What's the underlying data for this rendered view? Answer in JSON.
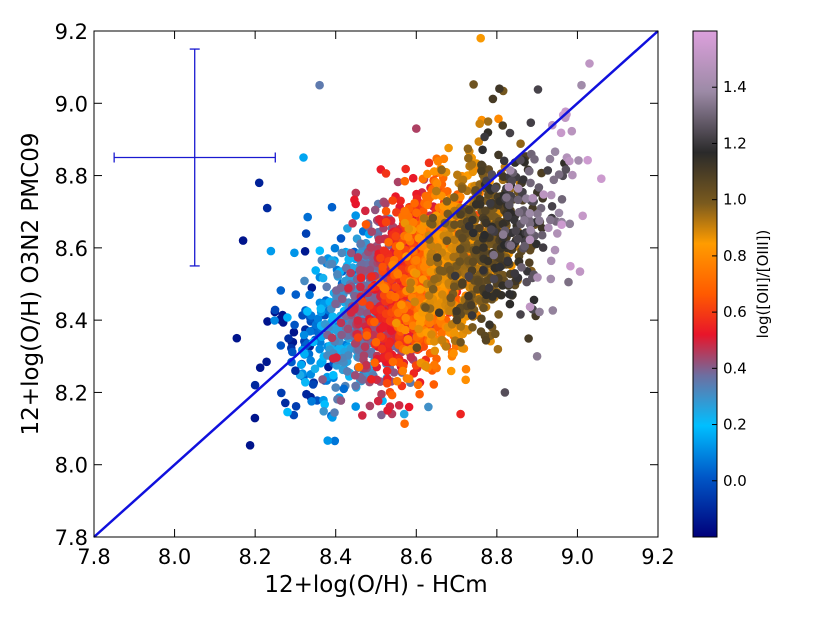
{
  "chart_data": {
    "type": "scatter",
    "xlabel": "12+log(O/H) - HCm",
    "ylabel": "12+log(O/H) O3N2 PMC09",
    "xlim": [
      7.8,
      9.2
    ],
    "ylim": [
      7.8,
      9.2
    ],
    "x_ticks": [
      7.8,
      8.0,
      8.2,
      8.4,
      8.6,
      8.8,
      9.0,
      9.2
    ],
    "x_tick_labels": [
      "7.8",
      "8.0",
      "8.2",
      "8.4",
      "8.6",
      "8.8",
      "9.0",
      "9.2"
    ],
    "y_ticks": [
      7.8,
      8.0,
      8.2,
      8.4,
      8.6,
      8.8,
      9.0,
      9.2
    ],
    "y_tick_labels": [
      "7.8",
      "8.0",
      "8.2",
      "8.4",
      "8.6",
      "8.8",
      "9.0",
      "9.2"
    ],
    "grid": false,
    "one_to_one_line": {
      "from": [
        7.8,
        7.8
      ],
      "to": [
        9.2,
        9.2
      ],
      "color": "#1010dd"
    },
    "error_bar": {
      "x": 8.05,
      "y": 8.85,
      "x_err": 0.2,
      "y_err": 0.3,
      "color": "#1a1ad0"
    },
    "colorbar": {
      "label": "log([OII]/[OIII])",
      "range": [
        -0.2,
        1.6
      ],
      "ticks": [
        0.0,
        0.2,
        0.4,
        0.6,
        0.8,
        1.0,
        1.2,
        1.4
      ],
      "tick_labels": [
        "0.0",
        "0.2",
        "0.4",
        "0.6",
        "0.8",
        "1.0",
        "1.2",
        "1.4"
      ],
      "stops": [
        {
          "v": 0.0,
          "color": "#00007a"
        },
        {
          "v": 0.12,
          "color": "#0058c8"
        },
        {
          "v": 0.22,
          "color": "#00bfff"
        },
        {
          "v": 0.32,
          "color": "#6e6ea0"
        },
        {
          "v": 0.4,
          "color": "#e8152a"
        },
        {
          "v": 0.48,
          "color": "#ff5a00"
        },
        {
          "v": 0.58,
          "color": "#ff9c00"
        },
        {
          "v": 0.66,
          "color": "#7a5a1e"
        },
        {
          "v": 0.76,
          "color": "#2a2a2a"
        },
        {
          "v": 0.88,
          "color": "#9c8aa6"
        },
        {
          "v": 1.0,
          "color": "#dca0dc"
        }
      ]
    },
    "generated_cloud": {
      "note": "Dense point cloud rendered procedurally; colour follows the colourbar with log([OII]/[OIII]) increasing with HCm abundance.",
      "n": 2600,
      "x_center": 8.62,
      "x_sd": 0.14,
      "slope": 0.6,
      "intercept_at_x_center": 8.52,
      "y_sd": 0.12,
      "color_value_min": -0.15,
      "color_value_max": 1.55
    },
    "highlight_points": [
      {
        "x": 8.17,
        "y": 8.62,
        "c": -0.15
      },
      {
        "x": 8.2,
        "y": 8.22,
        "c": -0.1
      },
      {
        "x": 8.21,
        "y": 8.78,
        "c": -0.12
      },
      {
        "x": 8.23,
        "y": 8.71,
        "c": -0.1
      },
      {
        "x": 8.36,
        "y": 9.05,
        "c": 0.35
      },
      {
        "x": 8.42,
        "y": 8.21,
        "c": 0.05
      },
      {
        "x": 8.57,
        "y": 8.14,
        "c": 0.25
      },
      {
        "x": 8.6,
        "y": 8.93,
        "c": 0.45
      },
      {
        "x": 8.63,
        "y": 8.16,
        "c": 0.3
      },
      {
        "x": 8.71,
        "y": 8.14,
        "c": 0.55
      },
      {
        "x": 8.76,
        "y": 9.18,
        "c": 0.85
      },
      {
        "x": 8.82,
        "y": 8.2,
        "c": 1.25
      },
      {
        "x": 8.9,
        "y": 8.3,
        "c": 1.35
      },
      {
        "x": 8.95,
        "y": 8.64,
        "c": 1.45
      },
      {
        "x": 9.03,
        "y": 9.11,
        "c": 1.5
      },
      {
        "x": 9.01,
        "y": 9.05,
        "c": 1.4
      },
      {
        "x": 8.98,
        "y": 8.84,
        "c": 1.5
      },
      {
        "x": 8.97,
        "y": 8.96,
        "c": 1.5
      },
      {
        "x": 8.32,
        "y": 8.85,
        "c": 0.15
      },
      {
        "x": 8.3,
        "y": 8.26,
        "c": -0.1
      }
    ]
  }
}
